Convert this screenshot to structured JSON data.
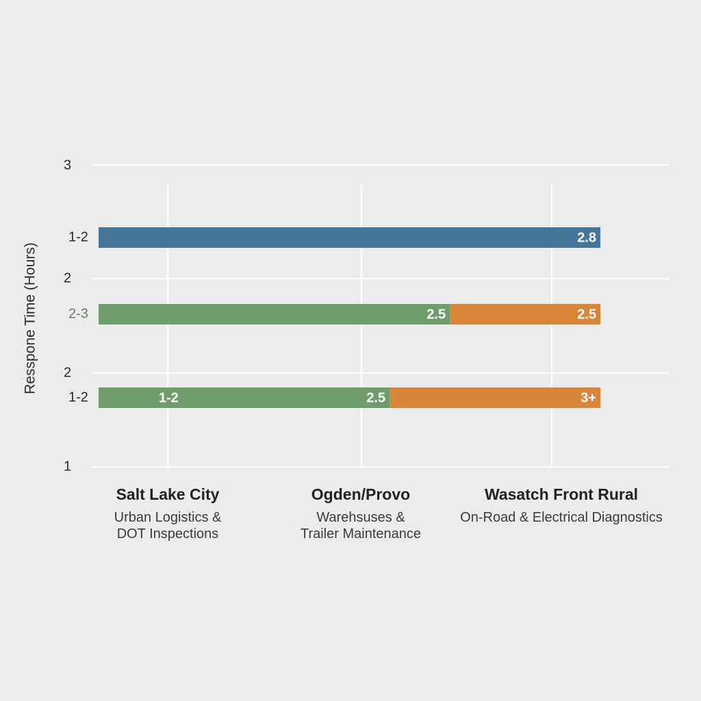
{
  "chart_data": {
    "type": "bar",
    "orientation": "horizontal-stacked",
    "ylabel": "Resspone Time (Hours)",
    "y_ticks": [
      "3",
      "2",
      "2",
      "1"
    ],
    "rows": [
      {
        "label": "1-2",
        "label_color": "#2a2a2a",
        "segments": [
          {
            "start": 0,
            "end": 1.0,
            "color": "#45769a",
            "data_label": "2.8"
          }
        ]
      },
      {
        "label": "2-3",
        "label_color": "#5a8a50",
        "segments": [
          {
            "start": 0,
            "end": 0.7,
            "color": "#6e9c6a",
            "data_label": "2.5"
          },
          {
            "start": 0.7,
            "end": 1.0,
            "color": "#d98638",
            "data_label": "2.5"
          }
        ]
      },
      {
        "label": "1-2",
        "label_color": "#2a2a2a",
        "segments": [
          {
            "start": 0,
            "end": 0.58,
            "color": "#6e9c6a",
            "data_label": "2.5",
            "inner_label": "1-2"
          },
          {
            "start": 0.58,
            "end": 1.0,
            "color": "#d98638",
            "data_label": "3+"
          }
        ]
      }
    ],
    "categories": [
      {
        "name": "Salt Lake City",
        "desc": "Urban Logistics &\nDOT Inspections"
      },
      {
        "name": "Ogden/Provo",
        "desc": "Warehsuses &\nTrailer Maintenance"
      },
      {
        "name": "Wasatch Front Rural",
        "desc": "On-Road & Electrical Diagnostics"
      }
    ],
    "grid": true,
    "legend": "none"
  }
}
